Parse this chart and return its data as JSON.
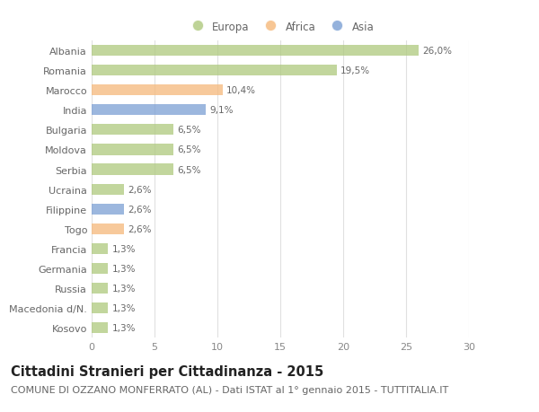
{
  "countries": [
    "Albania",
    "Romania",
    "Marocco",
    "India",
    "Bulgaria",
    "Moldova",
    "Serbia",
    "Ucraina",
    "Filippine",
    "Togo",
    "Francia",
    "Germania",
    "Russia",
    "Macedonia d/N.",
    "Kosovo"
  ],
  "values": [
    26.0,
    19.5,
    10.4,
    9.1,
    6.5,
    6.5,
    6.5,
    2.6,
    2.6,
    2.6,
    1.3,
    1.3,
    1.3,
    1.3,
    1.3
  ],
  "labels": [
    "26,0%",
    "19,5%",
    "10,4%",
    "9,1%",
    "6,5%",
    "6,5%",
    "6,5%",
    "2,6%",
    "2,6%",
    "2,6%",
    "1,3%",
    "1,3%",
    "1,3%",
    "1,3%",
    "1,3%"
  ],
  "continents": [
    "Europa",
    "Europa",
    "Africa",
    "Asia",
    "Europa",
    "Europa",
    "Europa",
    "Europa",
    "Asia",
    "Africa",
    "Europa",
    "Europa",
    "Europa",
    "Europa",
    "Europa"
  ],
  "colors": {
    "Europa": "#aec97d",
    "Africa": "#f5b87a",
    "Asia": "#7b9fd4"
  },
  "title": "Cittadini Stranieri per Cittadinanza - 2015",
  "subtitle": "COMUNE DI OZZANO MONFERRATO (AL) - Dati ISTAT al 1° gennaio 2015 - TUTTITALIA.IT",
  "xlim": [
    0,
    30
  ],
  "xticks": [
    0,
    5,
    10,
    15,
    20,
    25,
    30
  ],
  "background_color": "#ffffff",
  "grid_color": "#e0e0e0",
  "bar_height": 0.55,
  "title_fontsize": 10.5,
  "subtitle_fontsize": 8,
  "label_fontsize": 7.5,
  "tick_fontsize": 8,
  "legend_fontsize": 8.5
}
